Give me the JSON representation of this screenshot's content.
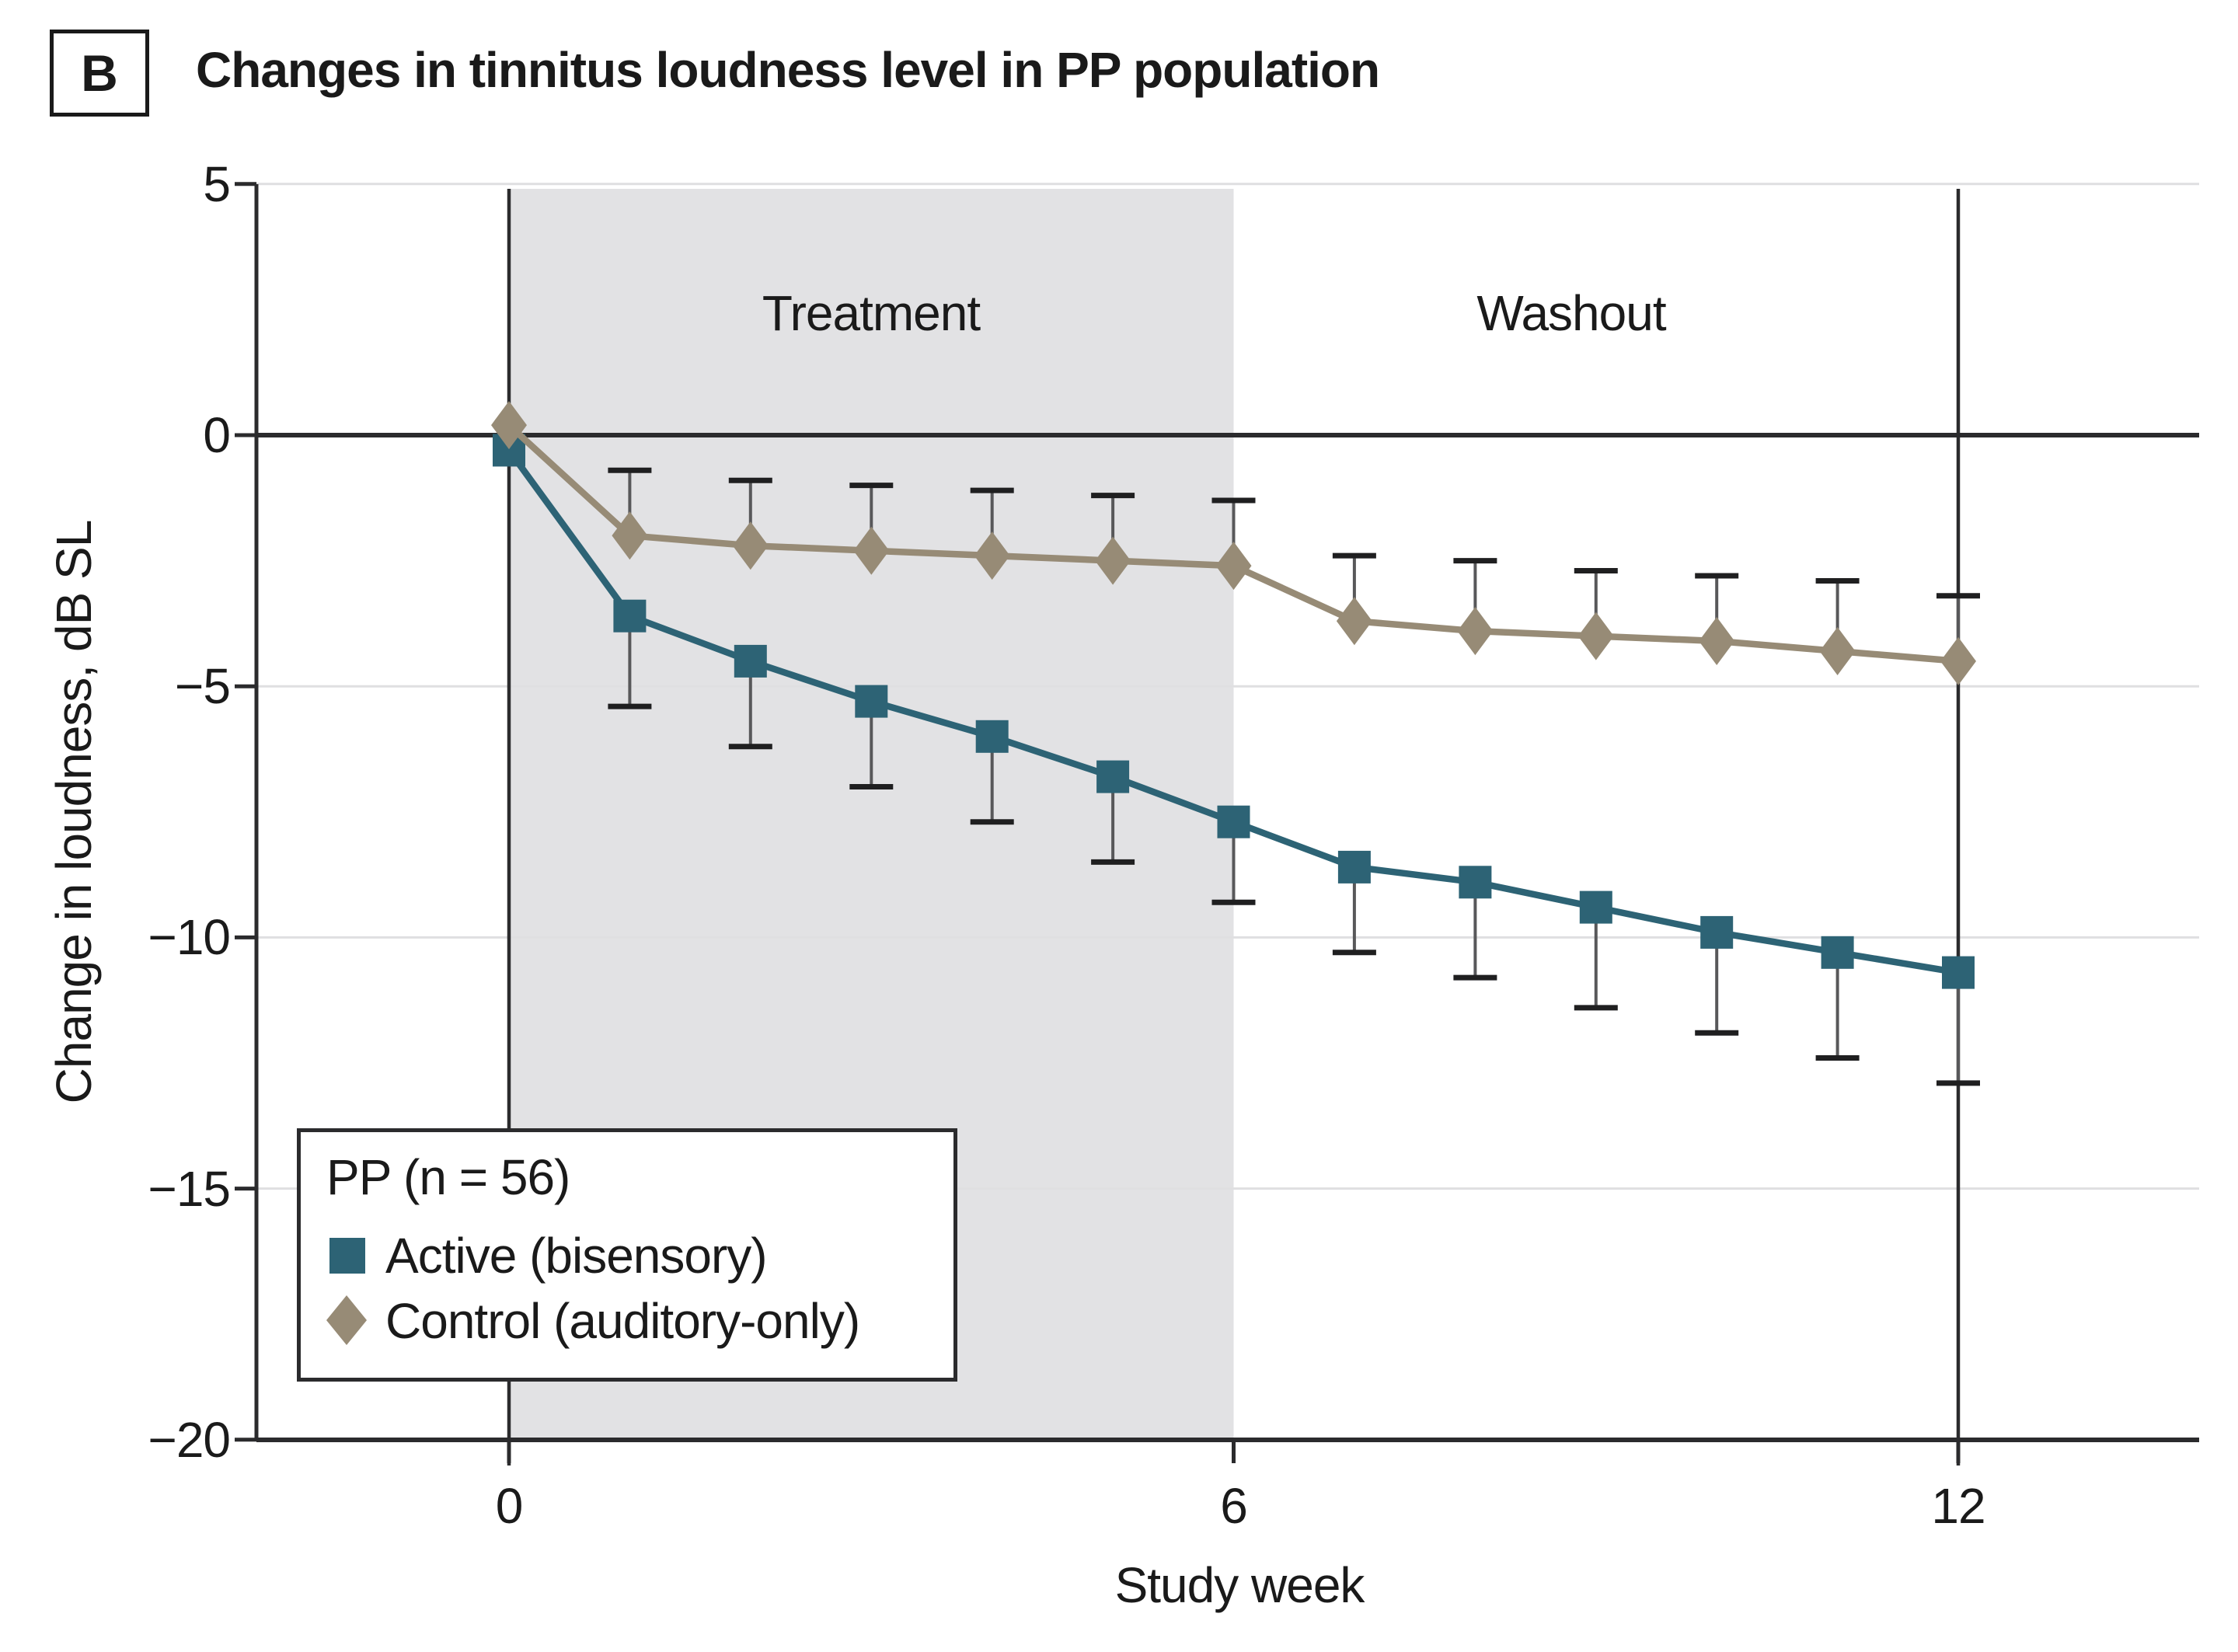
{
  "title": {
    "panel_label": "B",
    "text": "Changes in tinnitus loudness level in PP population"
  },
  "chart_data": {
    "type": "line",
    "title": "Changes in tinnitus loudness level in PP population",
    "xlabel": "Study week",
    "ylabel": "Change in loudness, dB SL",
    "x_weeks": [
      0,
      1,
      2,
      3,
      4,
      5,
      6,
      7,
      8,
      9,
      10,
      11,
      12
    ],
    "xticks": [
      0,
      6,
      12
    ],
    "yticks": [
      5,
      0,
      -5,
      -10,
      -15,
      -20
    ],
    "ylim": [
      -20,
      5
    ],
    "xlim": [
      0,
      12
    ],
    "grid": "horizontal",
    "zero_line": true,
    "regions": [
      {
        "label": "Treatment",
        "from_week": 0,
        "to_week": 6,
        "shaded": true
      },
      {
        "label": "Washout",
        "from_week": 6,
        "to_week": 12,
        "shaded": false
      }
    ],
    "legend": {
      "title": "PP (n = 56)",
      "position": "lower-left"
    },
    "series": [
      {
        "name": "Active (bisensory)",
        "marker": "square",
        "color": "#2d6375",
        "values": [
          -0.3,
          -3.6,
          -4.5,
          -5.3,
          -6.0,
          -6.8,
          -7.7,
          -8.6,
          -8.9,
          -9.4,
          -9.9,
          -10.3,
          -10.7
        ],
        "error_cap_values": [
          null,
          -5.4,
          -6.2,
          -7.0,
          -7.7,
          -8.5,
          -9.3,
          -10.3,
          -10.8,
          -11.4,
          -11.9,
          -12.4,
          -12.9
        ],
        "error_direction": "down"
      },
      {
        "name": "Control (auditory-only)",
        "marker": "diamond",
        "color": "#978b76",
        "values": [
          0.2,
          -2.0,
          -2.2,
          -2.3,
          -2.4,
          -2.5,
          -2.6,
          -3.7,
          -3.9,
          -4.0,
          -4.1,
          -4.3,
          -4.5
        ],
        "error_cap_values": [
          null,
          -0.7,
          -0.9,
          -1.0,
          -1.1,
          -1.2,
          -1.3,
          -2.4,
          -2.5,
          -2.7,
          -2.8,
          -2.9,
          -3.2
        ],
        "error_direction": "up"
      }
    ]
  },
  "colors": {
    "background": "#ffffff",
    "shade": "#e2e2e4",
    "grid": "#dfdfe1",
    "axis": "#2b2b2d",
    "text": "#1a1a1a",
    "error_stem": "#58585a",
    "error_cap": "#1f1f20",
    "active": "#2d6375",
    "control": "#978b76"
  }
}
